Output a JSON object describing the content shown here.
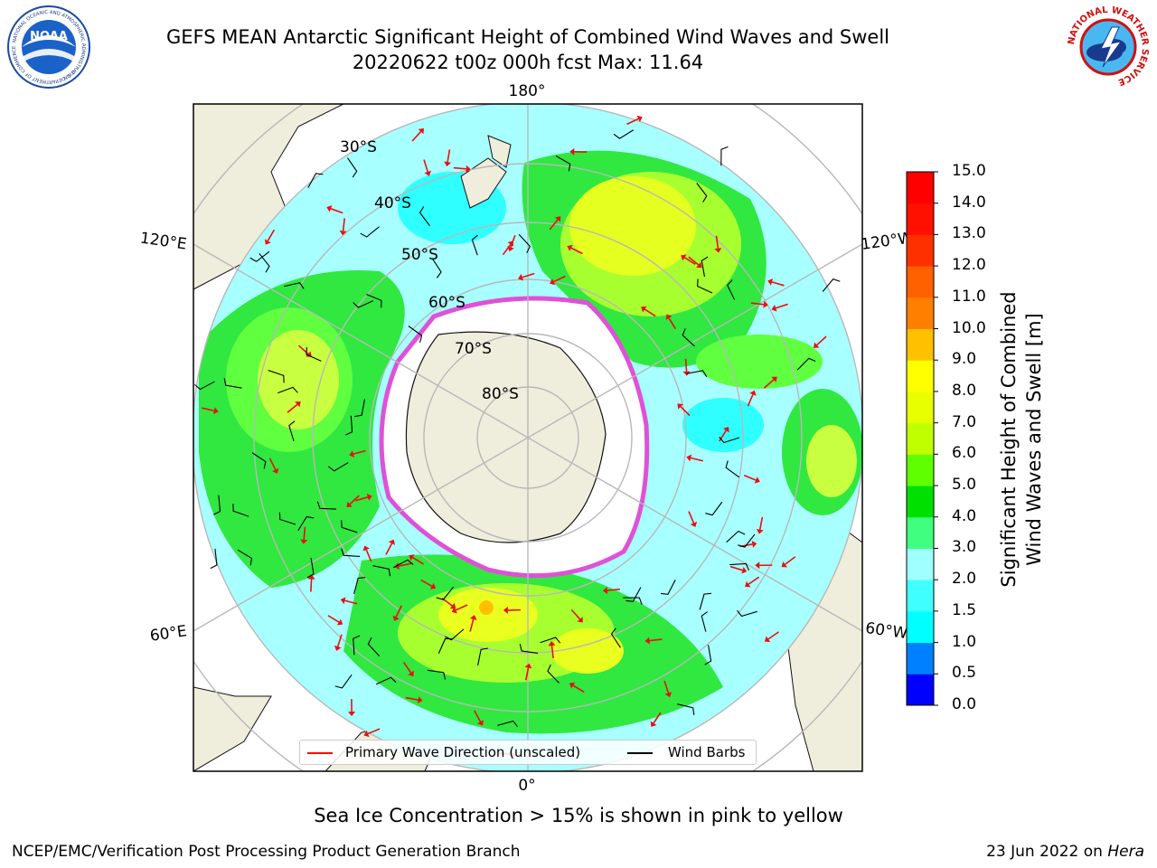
{
  "title": {
    "line1": "GEFS MEAN Antarctic Significant Height of Combined Wind Waves and Swell",
    "line2": "20220622 t00z 000h fcst   Max: 11.64"
  },
  "logos": {
    "left": {
      "name": "NOAA",
      "ring_text": "NATIONAL OCEANIC AND ATMOSPHERIC ADMINISTRATION",
      "ring_text_bottom": "U.S. DEPARTMENT OF COMMERCE",
      "center": "NOAA"
    },
    "right": {
      "name": "National Weather Service",
      "ring_text": "NATIONAL WEATHER SERVICE"
    }
  },
  "map": {
    "projection": "south polar stereographic",
    "longitude_labels": [
      "180°",
      "120°E",
      "120°W",
      "60°E",
      "60°W",
      "0°"
    ],
    "latitude_labels": [
      "30°S",
      "40°S",
      "50°S",
      "60°S",
      "70°S",
      "80°S"
    ],
    "colors": {
      "land": "#efeddc",
      "ice": "#ffffff",
      "ice_edge": "#e050d8",
      "grid": "#b8b8b8",
      "wave_arrow": "#e81010",
      "wind_barb": "#000000"
    }
  },
  "legend": {
    "items": [
      {
        "label": "Primary Wave Direction (unscaled)",
        "color": "#ff0000"
      },
      {
        "label": "Wind Barbs",
        "color": "#000000"
      }
    ]
  },
  "colorbar": {
    "label_line1": "Significant Height of Combined",
    "label_line2": "Wind Waves and Swell [m]",
    "ticks": [
      "0.0",
      "0.5",
      "1.0",
      "1.5",
      "2.0",
      "3.0",
      "4.0",
      "5.0",
      "6.0",
      "7.0",
      "8.0",
      "9.0",
      "10.0",
      "11.0",
      "12.0",
      "13.0",
      "14.0",
      "15.0"
    ],
    "colors": [
      "#0000ff",
      "#0080ff",
      "#00ffff",
      "#40ffff",
      "#a0ffff",
      "#40ff80",
      "#00e000",
      "#60ff00",
      "#c0ff00",
      "#e8ff00",
      "#ffff00",
      "#ffc000",
      "#ff8000",
      "#ff6000",
      "#ff3000",
      "#ff1000",
      "#ff0000"
    ]
  },
  "caption": "Sea Ice Concentration > 15% is shown in pink to yellow",
  "footer": {
    "left": "NCEP/EMC/Verification Post Processing Product Generation Branch",
    "right_date": "23 Jun 2022 on ",
    "right_host": "Hera"
  }
}
